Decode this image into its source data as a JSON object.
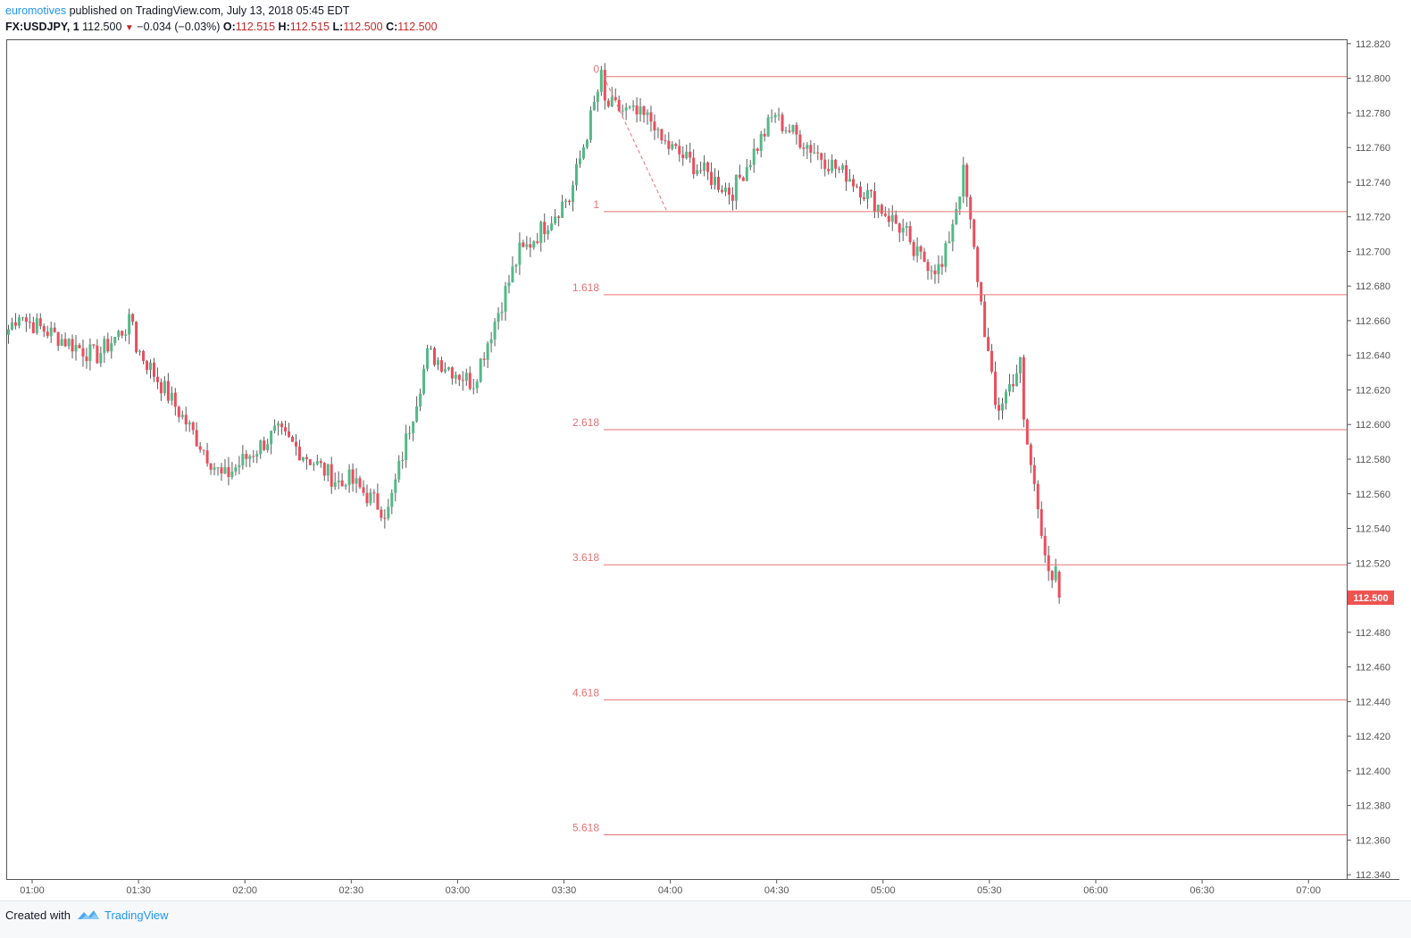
{
  "header": {
    "author": "euromotives",
    "published_text": " published on TradingView.com, July 13, 2018 05:45 EDT",
    "symbol": "FX:USDJPY, 1",
    "last": "112.500",
    "change": "−0.034 (−0.03%)",
    "o_label": "O:",
    "o_val": "112.515",
    "h_label": "H:",
    "h_val": "112.515",
    "l_label": "L:",
    "l_val": "112.500",
    "c_label": "C:",
    "c_val": "112.500"
  },
  "footer": {
    "created_with": "Created with",
    "brand": "TradingView"
  },
  "colors": {
    "up": "#53b987",
    "down": "#eb4d5c",
    "fib": "#e57373",
    "axis": "#555555",
    "price_tag": "#ef5350",
    "author_link": "#2196f3"
  },
  "chart_data": {
    "type": "candlestick",
    "symbol": "FX:USDJPY",
    "interval": "1",
    "ylim": [
      112.34,
      112.82
    ],
    "y_ticks": [
      "112.820",
      "112.800",
      "112.780",
      "112.760",
      "112.740",
      "112.720",
      "112.700",
      "112.680",
      "112.660",
      "112.640",
      "112.620",
      "112.600",
      "112.580",
      "112.560",
      "112.540",
      "112.520",
      "112.500",
      "112.480",
      "112.460",
      "112.440",
      "112.420",
      "112.400",
      "112.380",
      "112.360",
      "112.340"
    ],
    "x_ticks": [
      "01:00",
      "01:30",
      "02:00",
      "02:30",
      "03:00",
      "03:30",
      "04:00",
      "04:30",
      "05:00",
      "05:30",
      "06:00",
      "06:30",
      "07:00"
    ],
    "current_price": "112.500",
    "fib_extension": {
      "levels": [
        {
          "label": "0",
          "price": 112.801
        },
        {
          "label": "1",
          "price": 112.723
        },
        {
          "label": "1.618",
          "price": 112.675
        },
        {
          "label": "2.618",
          "price": 112.597
        },
        {
          "label": "3.618",
          "price": 112.519
        },
        {
          "label": "4.618",
          "price": 112.441
        },
        {
          "label": "5.618",
          "price": 112.363
        }
      ]
    },
    "anchors": [
      {
        "x": [
          0,
          3
        ],
        "y": [
          112.655,
          112.665
        ]
      },
      {
        "x": [
          5,
          24
        ],
        "y": [
          112.66,
          112.64
        ]
      },
      {
        "x": [
          25,
          35
        ],
        "y": [
          112.64,
          112.66
        ]
      },
      {
        "x": [
          36,
          60
        ],
        "y": [
          112.645,
          112.57
        ]
      },
      {
        "x": [
          61,
          75
        ],
        "y": [
          112.57,
          112.595
        ]
      },
      {
        "x": [
          76,
          94
        ],
        "y": [
          112.595,
          112.565
        ]
      },
      {
        "x": [
          95,
          106
        ],
        "y": [
          112.57,
          112.55
        ]
      },
      {
        "x": [
          107,
          118
        ],
        "y": [
          112.55,
          112.64
        ]
      },
      {
        "x": [
          119,
          130
        ],
        "y": [
          112.64,
          112.625
        ]
      },
      {
        "x": [
          131,
          144
        ],
        "y": [
          112.625,
          112.7
        ]
      },
      {
        "x": [
          145,
          157
        ],
        "y": [
          112.7,
          112.73
        ]
      },
      {
        "x": [
          158,
          167
        ],
        "y": [
          112.73,
          112.8
        ]
      },
      {
        "x": [
          168,
          182
        ],
        "y": [
          112.785,
          112.775
        ]
      },
      {
        "x": [
          183,
          203
        ],
        "y": [
          112.765,
          112.735
        ]
      },
      {
        "x": [
          204,
          216
        ],
        "y": [
          112.735,
          112.78
        ]
      },
      {
        "x": [
          217,
          235
        ],
        "y": [
          112.775,
          112.745
        ]
      },
      {
        "x": [
          236,
          253
        ],
        "y": [
          112.745,
          112.71
        ]
      },
      {
        "x": [
          254,
          262
        ],
        "y": [
          112.7,
          112.69
        ]
      },
      {
        "x": [
          263,
          269
        ],
        "y": [
          112.69,
          112.745
        ]
      },
      {
        "x": [
          270,
          278
        ],
        "y": [
          112.73,
          112.61
        ]
      },
      {
        "x": [
          279,
          285
        ],
        "y": [
          112.61,
          112.635
        ]
      },
      {
        "x": [
          286,
          294
        ],
        "y": [
          112.6,
          112.505
        ]
      },
      {
        "x": [
          295,
          296
        ],
        "y": [
          112.515,
          112.5
        ]
      }
    ],
    "last_candle": {
      "open": 112.515,
      "high": 112.515,
      "low": 112.5,
      "close": 112.5
    }
  }
}
